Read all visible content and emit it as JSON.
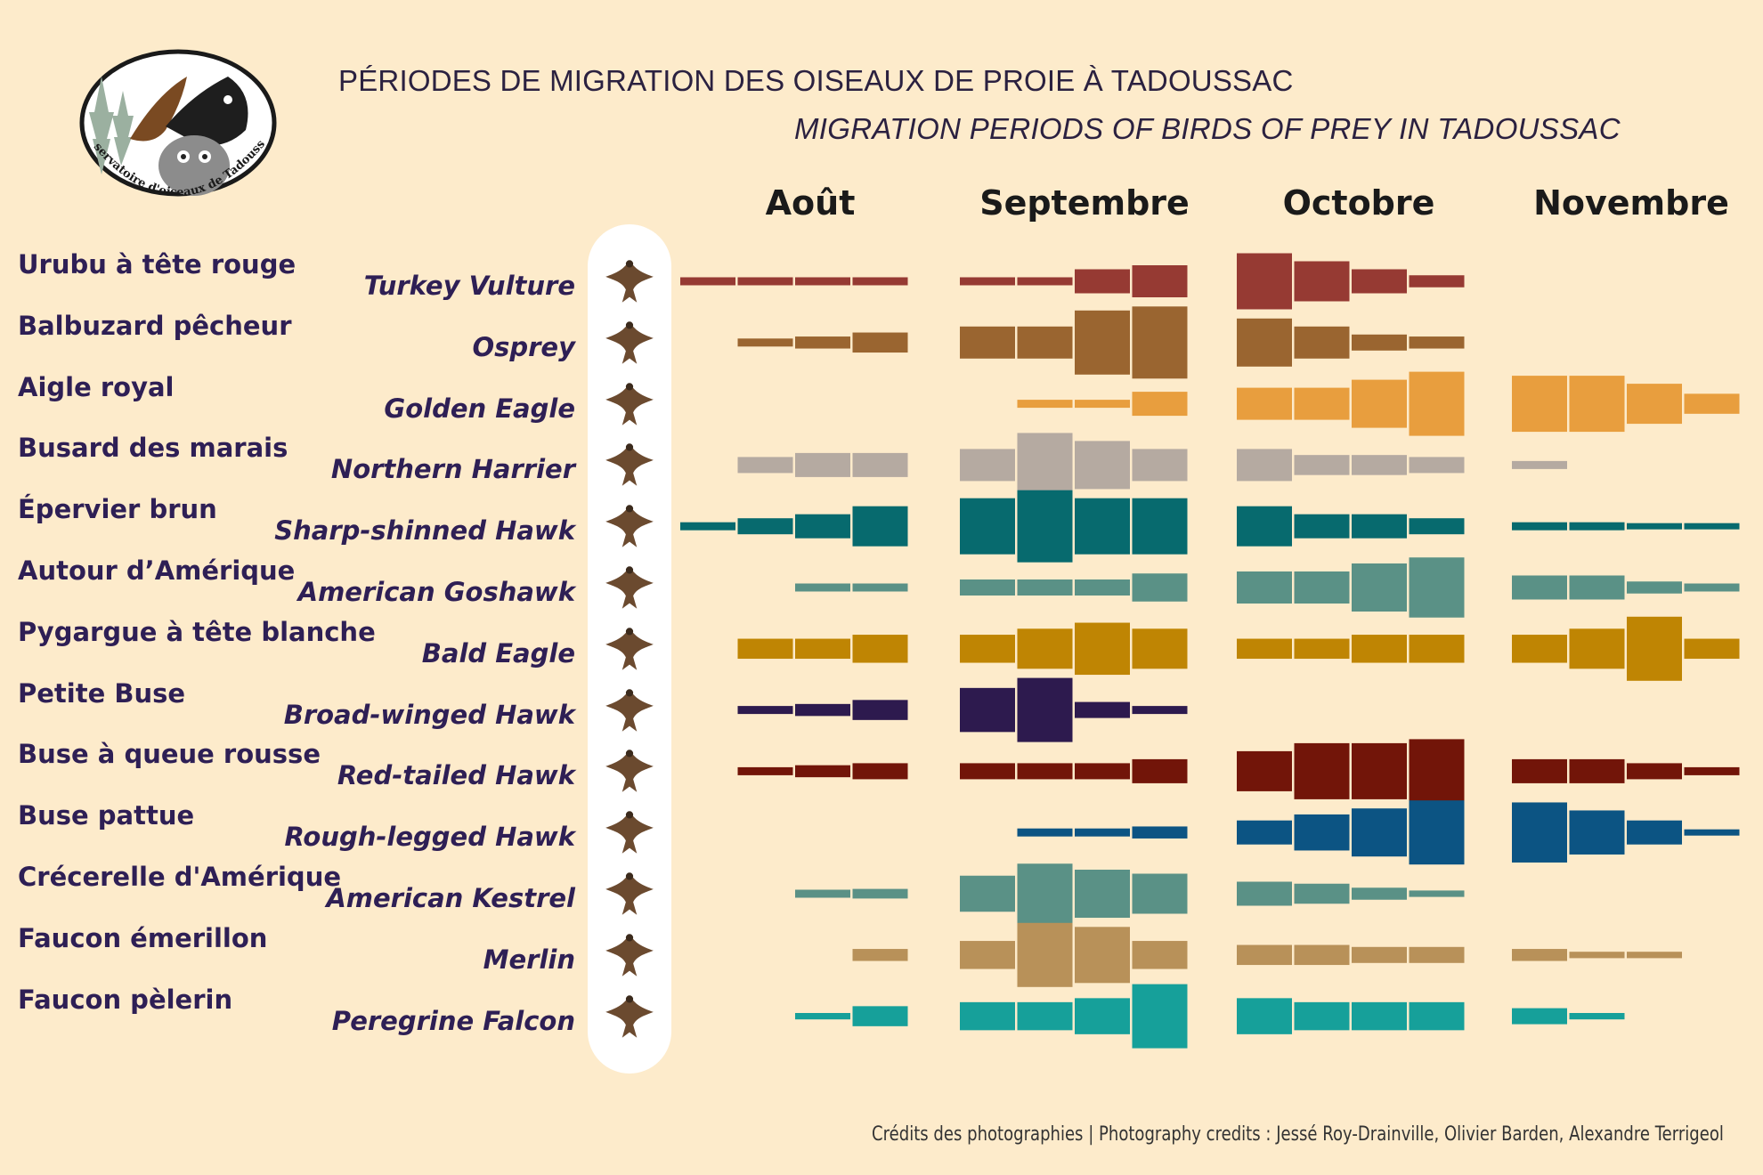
{
  "logo": {
    "text": "Observatoire d'oiseaux de Tadoussac",
    "icon": "observatory-logo"
  },
  "title_fr": "PÉRIODES DE MIGRATION DES OISEAUX DE PROIE À TADOUSSAC",
  "title_en": "MIGRATION PERIODS OF BIRDS OF PREY IN TADOUSSAC",
  "credits": "Crédits des photographies | Photography credits : Jessé Roy-Drainville, Olivier Barden, Alexandre Terrigeol",
  "chart_data": {
    "type": "heatmap",
    "title": "PÉRIODES DE MIGRATION DES OISEAUX DE PROIE À TADOUSSAC",
    "subtitle": "MIGRATION PERIODS OF BIRDS OF PREY IN TADOUSSAC",
    "months": [
      "Août",
      "Septembre",
      "Octobre",
      "Novembre"
    ],
    "weeks_per_month": 4,
    "value_scale": "relative bar height (0 = absent)",
    "series": [
      {
        "fr": "Urubu à tête rouge",
        "en": "Turkey Vulture",
        "color": "#963A33",
        "icon": "turkey-vulture-icon",
        "values": [
          1,
          1,
          1,
          1,
          1,
          1,
          3,
          4,
          7,
          5,
          3,
          1.5,
          0,
          0,
          0,
          0
        ]
      },
      {
        "fr": "Balbuzard pêcheur",
        "en": "Osprey",
        "color": "#9A6530",
        "icon": "osprey-icon",
        "values": [
          0,
          1,
          1.5,
          2.5,
          4,
          4,
          8,
          9,
          6,
          4,
          2,
          1.5,
          0,
          0,
          0,
          0
        ]
      },
      {
        "fr": "Aigle royal",
        "en": "Golden Eagle",
        "color": "#E89E3E",
        "icon": "golden-eagle-icon",
        "values": [
          0,
          0,
          0,
          0,
          0,
          1,
          1,
          3,
          4,
          4,
          6,
          8,
          7,
          7,
          5,
          2.5
        ]
      },
      {
        "fr": "Busard des marais",
        "en": "Northern Harrier",
        "color": "#B5AAA1",
        "icon": "northern-harrier-icon",
        "values": [
          0,
          2,
          3,
          3,
          4,
          8,
          6,
          4,
          4,
          2.5,
          2.5,
          2,
          1,
          0,
          0,
          0
        ]
      },
      {
        "fr": "Épervier brun",
        "en": "Sharp-shinned Hawk",
        "color": "#076A6E",
        "icon": "sharp-shinned-hawk-icon",
        "values": [
          1,
          2,
          3,
          5,
          7,
          9,
          7,
          7,
          5,
          3,
          3,
          2,
          1,
          1,
          0.5,
          0.5
        ]
      },
      {
        "fr": "Autour d’Amérique",
        "en": "American Goshawk",
        "color": "#5A9186",
        "icon": "american-goshawk-icon",
        "values": [
          0,
          0,
          1,
          1,
          2,
          2,
          2,
          3.5,
          4,
          4,
          6,
          7.5,
          3,
          3,
          1.5,
          1
        ]
      },
      {
        "fr": "Pygargue à tête blanche",
        "en": "Bald Eagle",
        "color": "#BF8503",
        "icon": "bald-eagle-icon",
        "values": [
          0,
          2.5,
          2.5,
          3.5,
          3.5,
          5,
          6.5,
          5,
          2.5,
          2.5,
          3.5,
          3.5,
          3.5,
          5,
          8,
          2.5
        ]
      },
      {
        "fr": "Petite Buse",
        "en": "Broad-winged Hawk",
        "color": "#2D1A4E",
        "icon": "broad-winged-hawk-icon",
        "values": [
          0,
          1,
          1.5,
          2.5,
          5.5,
          8,
          2,
          1,
          0,
          0,
          0,
          0,
          0,
          0,
          0,
          0
        ]
      },
      {
        "fr": "Buse à queue rousse",
        "en": "Red-tailed Hawk",
        "color": "#721509",
        "icon": "red-tailed-hawk-icon",
        "values": [
          0,
          1,
          1.5,
          2,
          2,
          2,
          2,
          3,
          5,
          7,
          7,
          8,
          3,
          3,
          2,
          1
        ]
      },
      {
        "fr": "Buse pattue",
        "en": "Rough-legged Hawk",
        "color": "#0C5483",
        "icon": "rough-legged-hawk-icon",
        "values": [
          0,
          0,
          0,
          0,
          0,
          1,
          1,
          1.5,
          3,
          4.5,
          6,
          8,
          7.5,
          5.5,
          3,
          0.7
        ]
      },
      {
        "fr": "Crécerelle d'Amérique",
        "en": "American Kestrel",
        "color": "#5A9186",
        "icon": "american-kestrel-icon",
        "values": [
          0,
          0,
          1,
          1.2,
          4.5,
          7.5,
          6,
          5,
          3,
          2.5,
          1.5,
          0.8,
          0,
          0,
          0,
          0
        ]
      },
      {
        "fr": "Faucon émerillon",
        "en": "Merlin",
        "color": "#B89159",
        "icon": "merlin-icon",
        "values": [
          0,
          0,
          0,
          1.5,
          3.5,
          8,
          7,
          3.5,
          2.5,
          2.5,
          2,
          2,
          1.5,
          0.8,
          0.8,
          0
        ]
      },
      {
        "fr": "Faucon pèlerin",
        "en": "Peregrine Falcon",
        "color": "#16A09A",
        "icon": "peregrine-falcon-icon",
        "values": [
          0,
          0,
          0.8,
          2.5,
          3.5,
          3.5,
          4.5,
          8,
          4.5,
          3.5,
          3.5,
          3.5,
          2,
          0.8,
          0,
          0
        ]
      }
    ]
  }
}
